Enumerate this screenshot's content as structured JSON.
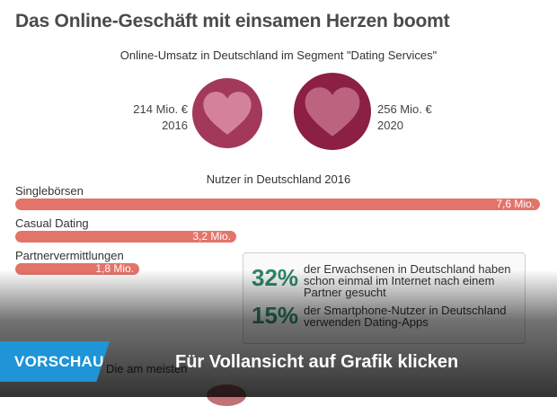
{
  "headline": "Das Online-Geschäft mit einsamen Herzen boomt",
  "revenue": {
    "subtitle": "Online-Umsatz in Deutschland im Segment \"Dating Services\"",
    "items": [
      {
        "value_label": "214 Mio. €",
        "year": "2016",
        "value": 214,
        "color": "#a2395a"
      },
      {
        "value_label": "256 Mio. €",
        "year": "2020",
        "value": 256,
        "color": "#8c1f44"
      }
    ]
  },
  "chart_data": {
    "type": "bar",
    "title": "Nutzer in Deutschland 2016",
    "categories": [
      "Singlebörsen",
      "Casual Dating",
      "Partnervermittlungen"
    ],
    "values": [
      7.6,
      3.2,
      1.8
    ],
    "value_labels": [
      "7,6 Mio.",
      "3,2 Mio.",
      "1,8 Mio."
    ],
    "unit": "Mio.",
    "xlim": [
      0,
      7.6
    ],
    "bar_color": "#e3746a",
    "orientation": "horizontal"
  },
  "facts": [
    {
      "pct": "32%",
      "text_lines": [
        "der Erwachsenen in Deutschland haben",
        "schon einmal im Internet nach einem",
        "Partner gesucht"
      ]
    },
    {
      "pct": "15%",
      "text_lines": [
        "der Smartphone-Nutzer in Deutschland",
        "verwenden Dating-Apps"
      ]
    }
  ],
  "below_text": "Die am meisten",
  "overlay": {
    "badge_label": "VORSCHAU",
    "cta_label": "Für Vollansicht auf Grafik klicken",
    "badge_color": "#1f94d6"
  }
}
